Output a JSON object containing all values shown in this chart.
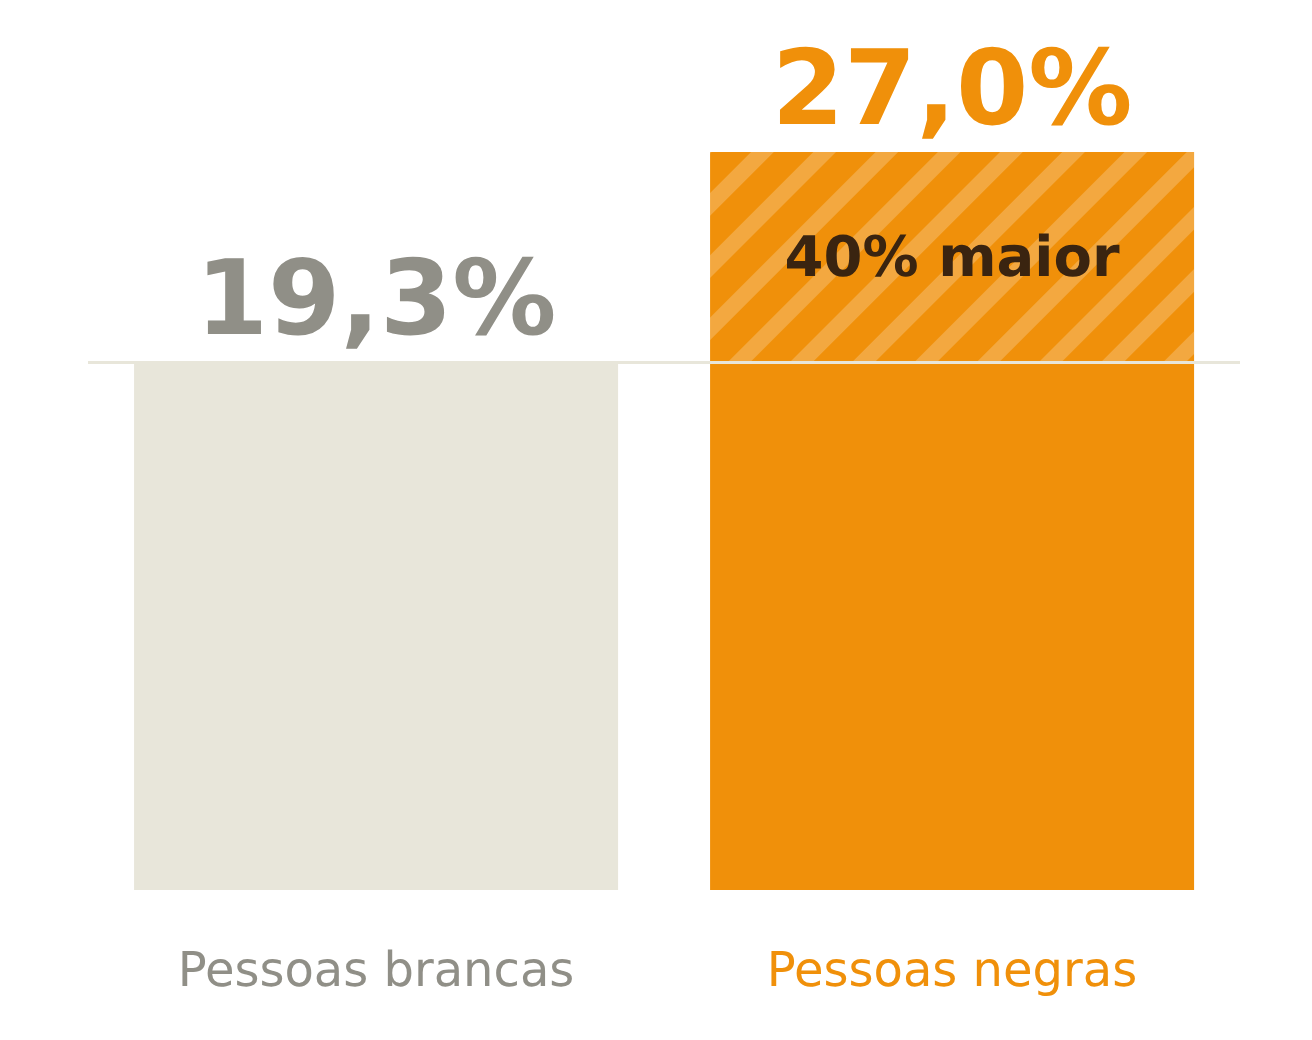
{
  "chart_data": {
    "type": "bar",
    "categories": [
      "Pessoas brancas",
      "Pessoas negras"
    ],
    "values": [
      19.3,
      27.0
    ],
    "colors": [
      "#e8e6da",
      "#f0900a"
    ],
    "value_labels": [
      "19,3%",
      "27,0%"
    ],
    "ref_lines": [
      {
        "axis": "y",
        "value": 19.3,
        "color": "#e8e6da"
      }
    ],
    "annotations": [
      "40% maior"
    ],
    "grid": false,
    "legend": false
  }
}
